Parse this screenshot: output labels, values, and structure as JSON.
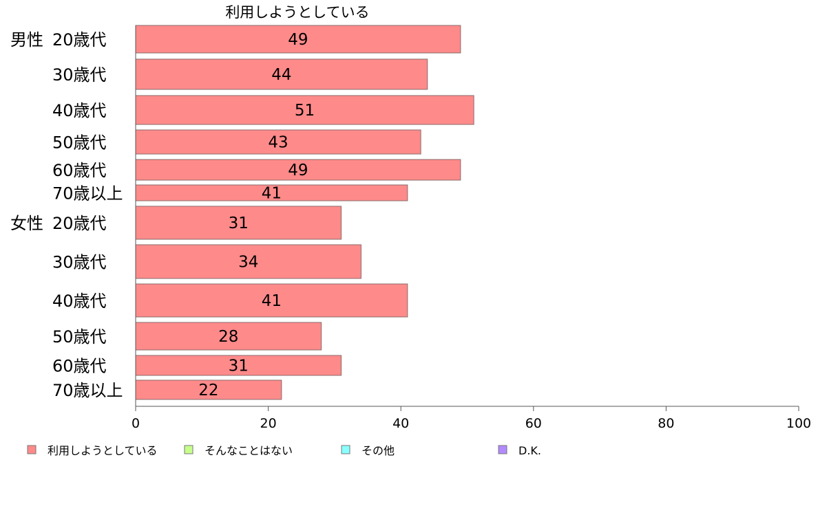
{
  "chart_data": {
    "type": "bar",
    "orientation": "horizontal",
    "title": "利用しようとしている",
    "groups": [
      {
        "name": "男性",
        "categories": [
          "20歳代",
          "30歳代",
          "40歳代",
          "50歳代",
          "60歳代",
          "70歳以上"
        ],
        "values": [
          49,
          44,
          51,
          43,
          49,
          41
        ]
      },
      {
        "name": "女性",
        "categories": [
          "20歳代",
          "30歳代",
          "40歳代",
          "50歳代",
          "60歳代",
          "70歳以上"
        ],
        "values": [
          31,
          34,
          41,
          28,
          31,
          22
        ]
      }
    ],
    "xlim": [
      0,
      100
    ],
    "xticks": [
      0,
      20,
      40,
      60,
      80,
      100
    ],
    "grid": false,
    "legend_position": "bottom",
    "legend": [
      "利用しようとしている",
      "そんなことはない",
      "その他",
      "D.K."
    ],
    "colors": {
      "bar": "#ff8a8a",
      "bar_stroke": "#8a6a6a",
      "legend": [
        "#ff8a8a",
        "#c6ff8a",
        "#8affff",
        "#b48aff"
      ]
    }
  }
}
